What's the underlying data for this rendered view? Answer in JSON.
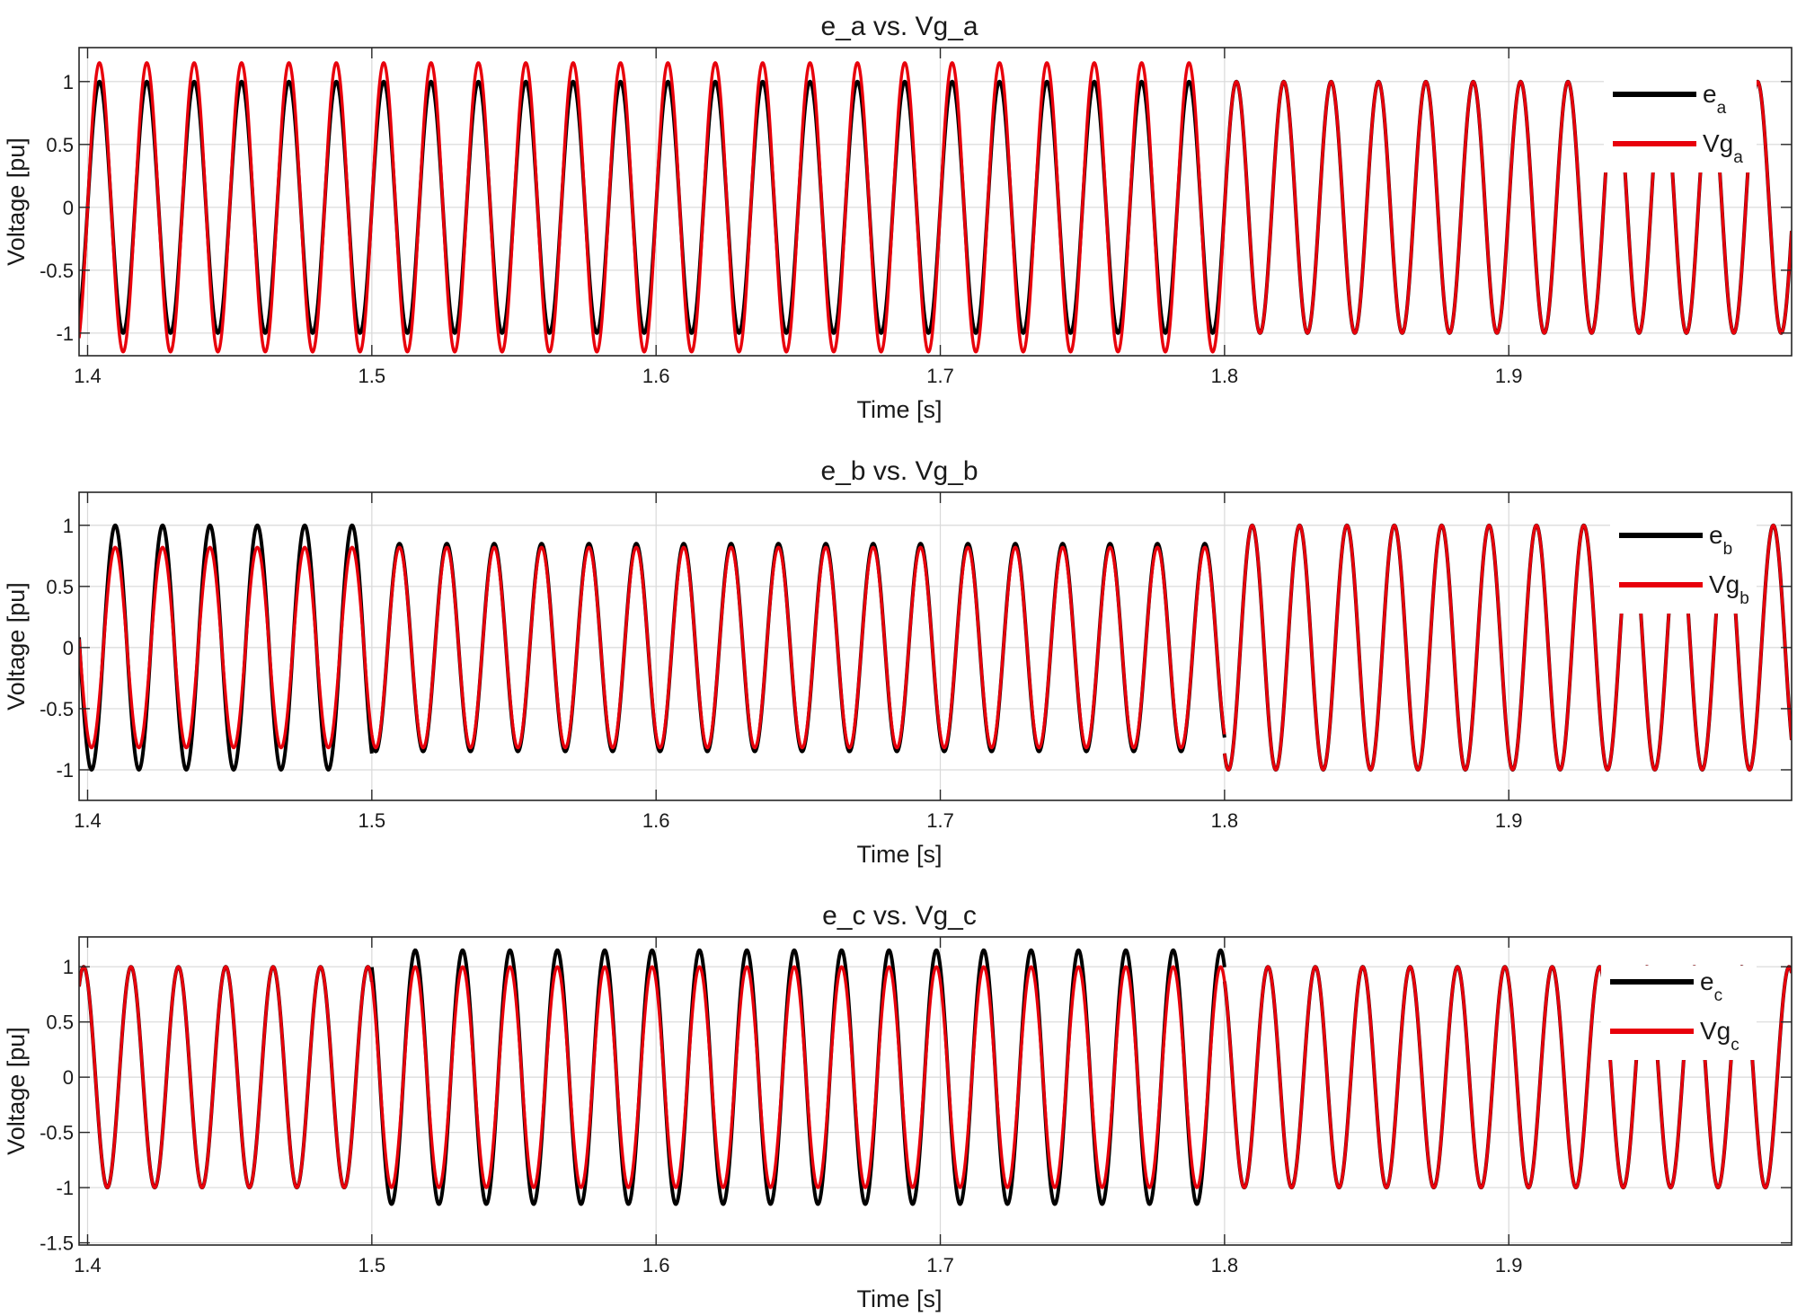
{
  "chart_data": [
    {
      "type": "line",
      "title": "e_a vs. Vg_a",
      "xlabel": "Time [s]",
      "ylabel": "Voltage [pu]",
      "xlim": [
        1.397,
        1.9995
      ],
      "ylim": [
        -1.18,
        1.27
      ],
      "xticks": [
        1.4,
        1.5,
        1.6,
        1.7,
        1.8,
        1.9
      ],
      "xtick_labels": [
        "1.4",
        "1.5",
        "1.6",
        "1.7",
        "1.8",
        "1.9"
      ],
      "yticks": [
        1,
        0.5,
        0,
        -0.5,
        -1
      ],
      "ytick_labels": [
        "1",
        "0.5",
        "0",
        "-0.5",
        "-1"
      ],
      "grid": true,
      "legend_position": "top-right",
      "frequency_hz": 60,
      "series": [
        {
          "name": "e",
          "name_sub": "a",
          "color": "#000000",
          "phase_deg": 0,
          "segments": [
            {
              "t_start": 1.397,
              "t_end": 1.5,
              "amplitude": 1.0
            },
            {
              "t_start": 1.5,
              "t_end": 1.8,
              "amplitude": 1.0
            },
            {
              "t_start": 1.8,
              "t_end": 1.9995,
              "amplitude": 1.0
            }
          ]
        },
        {
          "name": "Vg",
          "name_sub": "a",
          "color": "#e8000b",
          "phase_deg": 0,
          "segments": [
            {
              "t_start": 1.397,
              "t_end": 1.5,
              "amplitude": 1.15
            },
            {
              "t_start": 1.5,
              "t_end": 1.8,
              "amplitude": 1.15
            },
            {
              "t_start": 1.8,
              "t_end": 1.9995,
              "amplitude": 1.0
            }
          ]
        }
      ]
    },
    {
      "type": "line",
      "title": "e_b vs. Vg_b",
      "xlabel": "Time [s]",
      "ylabel": "Voltage [pu]",
      "xlim": [
        1.397,
        1.9995
      ],
      "ylim": [
        -1.25,
        1.27
      ],
      "xticks": [
        1.4,
        1.5,
        1.6,
        1.7,
        1.8,
        1.9
      ],
      "xtick_labels": [
        "1.4",
        "1.5",
        "1.6",
        "1.7",
        "1.8",
        "1.9"
      ],
      "yticks": [
        1,
        0.5,
        0,
        -0.5,
        -1
      ],
      "ytick_labels": [
        "1",
        "0.5",
        "0",
        "-0.5",
        "-1"
      ],
      "grid": true,
      "legend_position": "top-right",
      "frequency_hz": 60,
      "series": [
        {
          "name": "e",
          "name_sub": "b",
          "color": "#000000",
          "phase_deg": -120,
          "segments": [
            {
              "t_start": 1.397,
              "t_end": 1.5,
              "amplitude": 1.0
            },
            {
              "t_start": 1.5,
              "t_end": 1.8,
              "amplitude": 0.85
            },
            {
              "t_start": 1.8,
              "t_end": 1.9995,
              "amplitude": 1.0
            }
          ]
        },
        {
          "name": "Vg",
          "name_sub": "b",
          "color": "#e8000b",
          "phase_deg": -120,
          "segments": [
            {
              "t_start": 1.397,
              "t_end": 1.5,
              "amplitude": 0.82
            },
            {
              "t_start": 1.5,
              "t_end": 1.8,
              "amplitude": 0.82
            },
            {
              "t_start": 1.8,
              "t_end": 1.9995,
              "amplitude": 1.0
            }
          ]
        }
      ]
    },
    {
      "type": "line",
      "title": "e_c vs. Vg_c",
      "xlabel": "Time [s]",
      "ylabel": "Voltage [pu]",
      "xlim": [
        1.397,
        1.9995
      ],
      "ylim": [
        -1.52,
        1.27
      ],
      "xticks": [
        1.4,
        1.5,
        1.6,
        1.7,
        1.8,
        1.9
      ],
      "xtick_labels": [
        "1.4",
        "1.5",
        "1.6",
        "1.7",
        "1.8",
        "1.9"
      ],
      "yticks": [
        1,
        0.5,
        0,
        -0.5,
        -1,
        -1.5
      ],
      "ytick_labels": [
        "1",
        "0.5",
        "0",
        "-0.5",
        "-1",
        "-1.5"
      ],
      "grid": true,
      "legend_position": "top-right",
      "frequency_hz": 60,
      "series": [
        {
          "name": "e",
          "name_sub": "c",
          "color": "#000000",
          "phase_deg": 120,
          "segments": [
            {
              "t_start": 1.397,
              "t_end": 1.5,
              "amplitude": 1.0
            },
            {
              "t_start": 1.5,
              "t_end": 1.8,
              "amplitude": 1.15
            },
            {
              "t_start": 1.8,
              "t_end": 1.9995,
              "amplitude": 1.0
            }
          ]
        },
        {
          "name": "Vg",
          "name_sub": "c",
          "color": "#e8000b",
          "phase_deg": 120,
          "segments": [
            {
              "t_start": 1.397,
              "t_end": 1.5,
              "amplitude": 1.0
            },
            {
              "t_start": 1.5,
              "t_end": 1.8,
              "amplitude": 1.0
            },
            {
              "t_start": 1.8,
              "t_end": 1.9995,
              "amplitude": 1.0
            }
          ]
        }
      ]
    }
  ]
}
